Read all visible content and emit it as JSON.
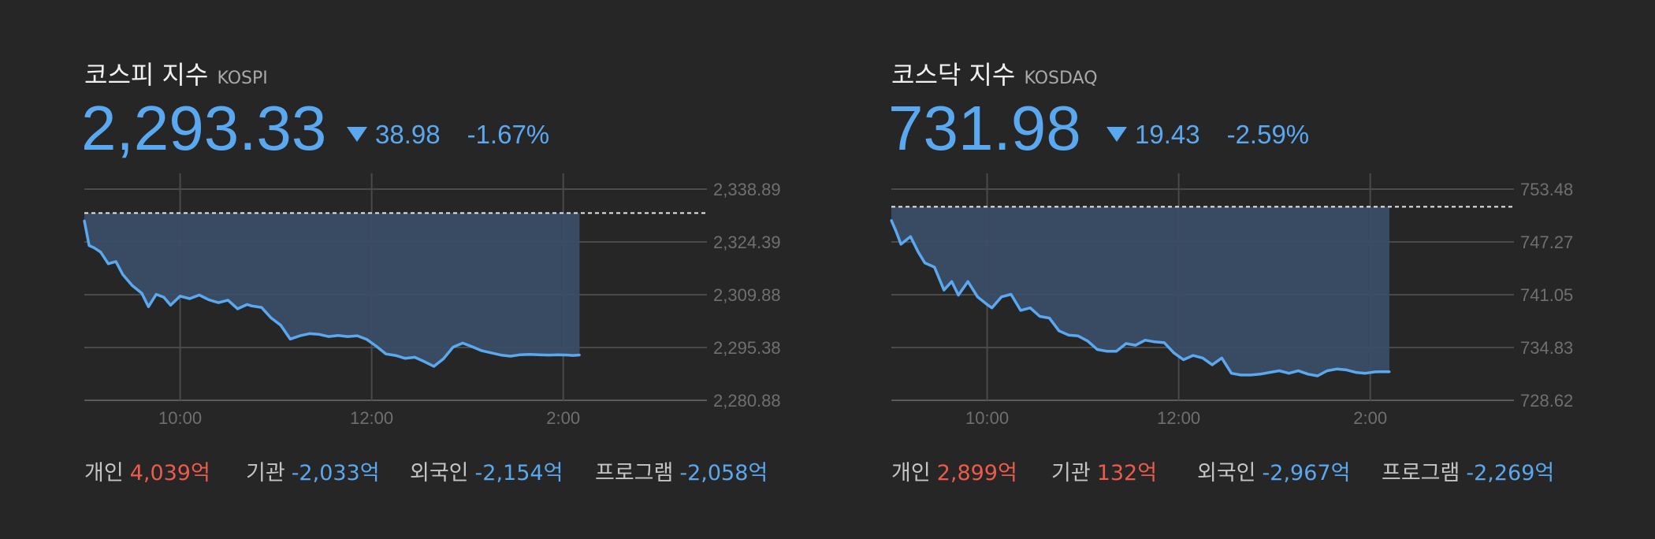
{
  "colors": {
    "background": "#262626",
    "accent_down": "#5aa8f0",
    "accent_up": "#ee5a4c",
    "area_fill": "#3a4c66",
    "grid": "#4a4a4a",
    "tick_label": "#6f6f6f"
  },
  "panels": [
    {
      "title_ko": "코스피 지수",
      "title_en": "KOSPI",
      "value": "2,293.33",
      "change": "38.98",
      "change_pct": "-1.67%",
      "direction_icon": "down-triangle-icon",
      "flows": [
        {
          "label": "개인",
          "value": "4,039억",
          "sign": "pos"
        },
        {
          "label": "기관",
          "value": "-2,033억",
          "sign": "neg"
        },
        {
          "label": "외국인",
          "value": "-2,154억",
          "sign": "neg"
        },
        {
          "label": "프로그램",
          "value": "-2,058억",
          "sign": "neg"
        }
      ]
    },
    {
      "title_ko": "코스닥 지수",
      "title_en": "KOSDAQ",
      "value": "731.98",
      "change": "19.43",
      "change_pct": "-2.59%",
      "direction_icon": "down-triangle-icon",
      "flows": [
        {
          "label": "개인",
          "value": "2,899억",
          "sign": "pos"
        },
        {
          "label": "기관",
          "value": "132억",
          "sign": "pos"
        },
        {
          "label": "외국인",
          "value": "-2,967억",
          "sign": "neg"
        },
        {
          "label": "프로그램",
          "value": "-2,269억",
          "sign": "neg"
        }
      ]
    }
  ],
  "chart_data": [
    {
      "type": "area",
      "title": "코스피 지수 KOSPI",
      "x_range_hours": [
        9,
        15.5
      ],
      "x_ticks": [
        {
          "x": 10,
          "label": "10:00"
        },
        {
          "x": 12,
          "label": "12:00"
        },
        {
          "x": 14,
          "label": "2:00"
        }
      ],
      "y_ticks": [
        "2,280.88",
        "2,295.38",
        "2,309.88",
        "2,324.39",
        "2,338.89"
      ],
      "ylim": [
        2280.88,
        2338.89
      ],
      "baseline": 2332.31,
      "grid": true,
      "series": [
        {
          "x": [
            9.0,
            9.05,
            9.1,
            9.17,
            9.25,
            9.33,
            9.4,
            9.5,
            9.6,
            9.67,
            9.75,
            9.83,
            9.9,
            10.0,
            10.1,
            10.2,
            10.3,
            10.4,
            10.5,
            10.6,
            10.7,
            10.75,
            10.85,
            10.95,
            11.05,
            11.15,
            11.25,
            11.35,
            11.45,
            11.55,
            11.65,
            11.75,
            11.85,
            11.95,
            12.05,
            12.15,
            12.25,
            12.35,
            12.45,
            12.55,
            12.65,
            12.75,
            12.85,
            12.95,
            13.05,
            13.15,
            13.25,
            13.35,
            13.45,
            13.55,
            13.65,
            13.75,
            13.85,
            13.95,
            14.05,
            14.1,
            14.17
          ],
          "y": [
            2330.2,
            2323.4,
            2322.8,
            2321.6,
            2318.4,
            2319.0,
            2315.5,
            2312.4,
            2310.3,
            2306.6,
            2310.0,
            2309.2,
            2307.0,
            2309.5,
            2308.8,
            2309.8,
            2308.5,
            2307.7,
            2308.4,
            2306.0,
            2307.2,
            2306.8,
            2306.4,
            2303.5,
            2301.5,
            2297.7,
            2298.6,
            2299.2,
            2299.0,
            2298.4,
            2298.7,
            2298.4,
            2298.6,
            2297.6,
            2295.7,
            2293.6,
            2293.2,
            2292.4,
            2292.7,
            2291.5,
            2290.2,
            2292.3,
            2295.5,
            2296.6,
            2295.6,
            2294.5,
            2293.9,
            2293.3,
            2293.0,
            2293.4,
            2293.5,
            2293.4,
            2293.3,
            2293.4,
            2293.3,
            2293.2,
            2293.33
          ]
        }
      ]
    },
    {
      "type": "area",
      "title": "코스닥 지수 KOSDAQ",
      "x_range_hours": [
        9,
        15.5
      ],
      "x_ticks": [
        {
          "x": 10,
          "label": "10:00"
        },
        {
          "x": 12,
          "label": "12:00"
        },
        {
          "x": 14,
          "label": "2:00"
        }
      ],
      "y_ticks": [
        "728.62",
        "734.83",
        "741.05",
        "747.27",
        "753.48"
      ],
      "ylim": [
        728.62,
        753.48
      ],
      "baseline": 751.41,
      "grid": true,
      "series": [
        {
          "x": [
            9.0,
            9.05,
            9.1,
            9.2,
            9.28,
            9.35,
            9.45,
            9.55,
            9.63,
            9.7,
            9.8,
            9.9,
            10.0,
            10.05,
            10.15,
            10.25,
            10.35,
            10.45,
            10.55,
            10.65,
            10.75,
            10.85,
            10.95,
            11.05,
            11.15,
            11.25,
            11.35,
            11.45,
            11.55,
            11.65,
            11.75,
            11.85,
            11.95,
            12.05,
            12.15,
            12.25,
            12.35,
            12.45,
            12.55,
            12.65,
            12.75,
            12.85,
            12.95,
            13.05,
            13.15,
            13.25,
            13.35,
            13.45,
            13.55,
            13.65,
            13.75,
            13.85,
            13.95,
            14.05,
            14.1,
            14.2
          ],
          "y": [
            749.8,
            748.5,
            747.0,
            747.9,
            746.1,
            744.8,
            744.3,
            741.6,
            742.6,
            741.0,
            742.6,
            740.8,
            739.9,
            739.5,
            740.8,
            741.1,
            739.2,
            739.5,
            738.5,
            738.3,
            736.8,
            736.3,
            736.2,
            735.6,
            734.6,
            734.4,
            734.4,
            735.3,
            735.1,
            735.7,
            735.5,
            735.4,
            734.2,
            733.4,
            733.9,
            733.6,
            732.8,
            733.6,
            731.8,
            731.6,
            731.6,
            731.7,
            731.9,
            732.1,
            731.8,
            732.1,
            731.7,
            731.5,
            732.1,
            732.3,
            732.2,
            731.9,
            731.8,
            731.97,
            731.99,
            731.98
          ]
        }
      ]
    }
  ]
}
